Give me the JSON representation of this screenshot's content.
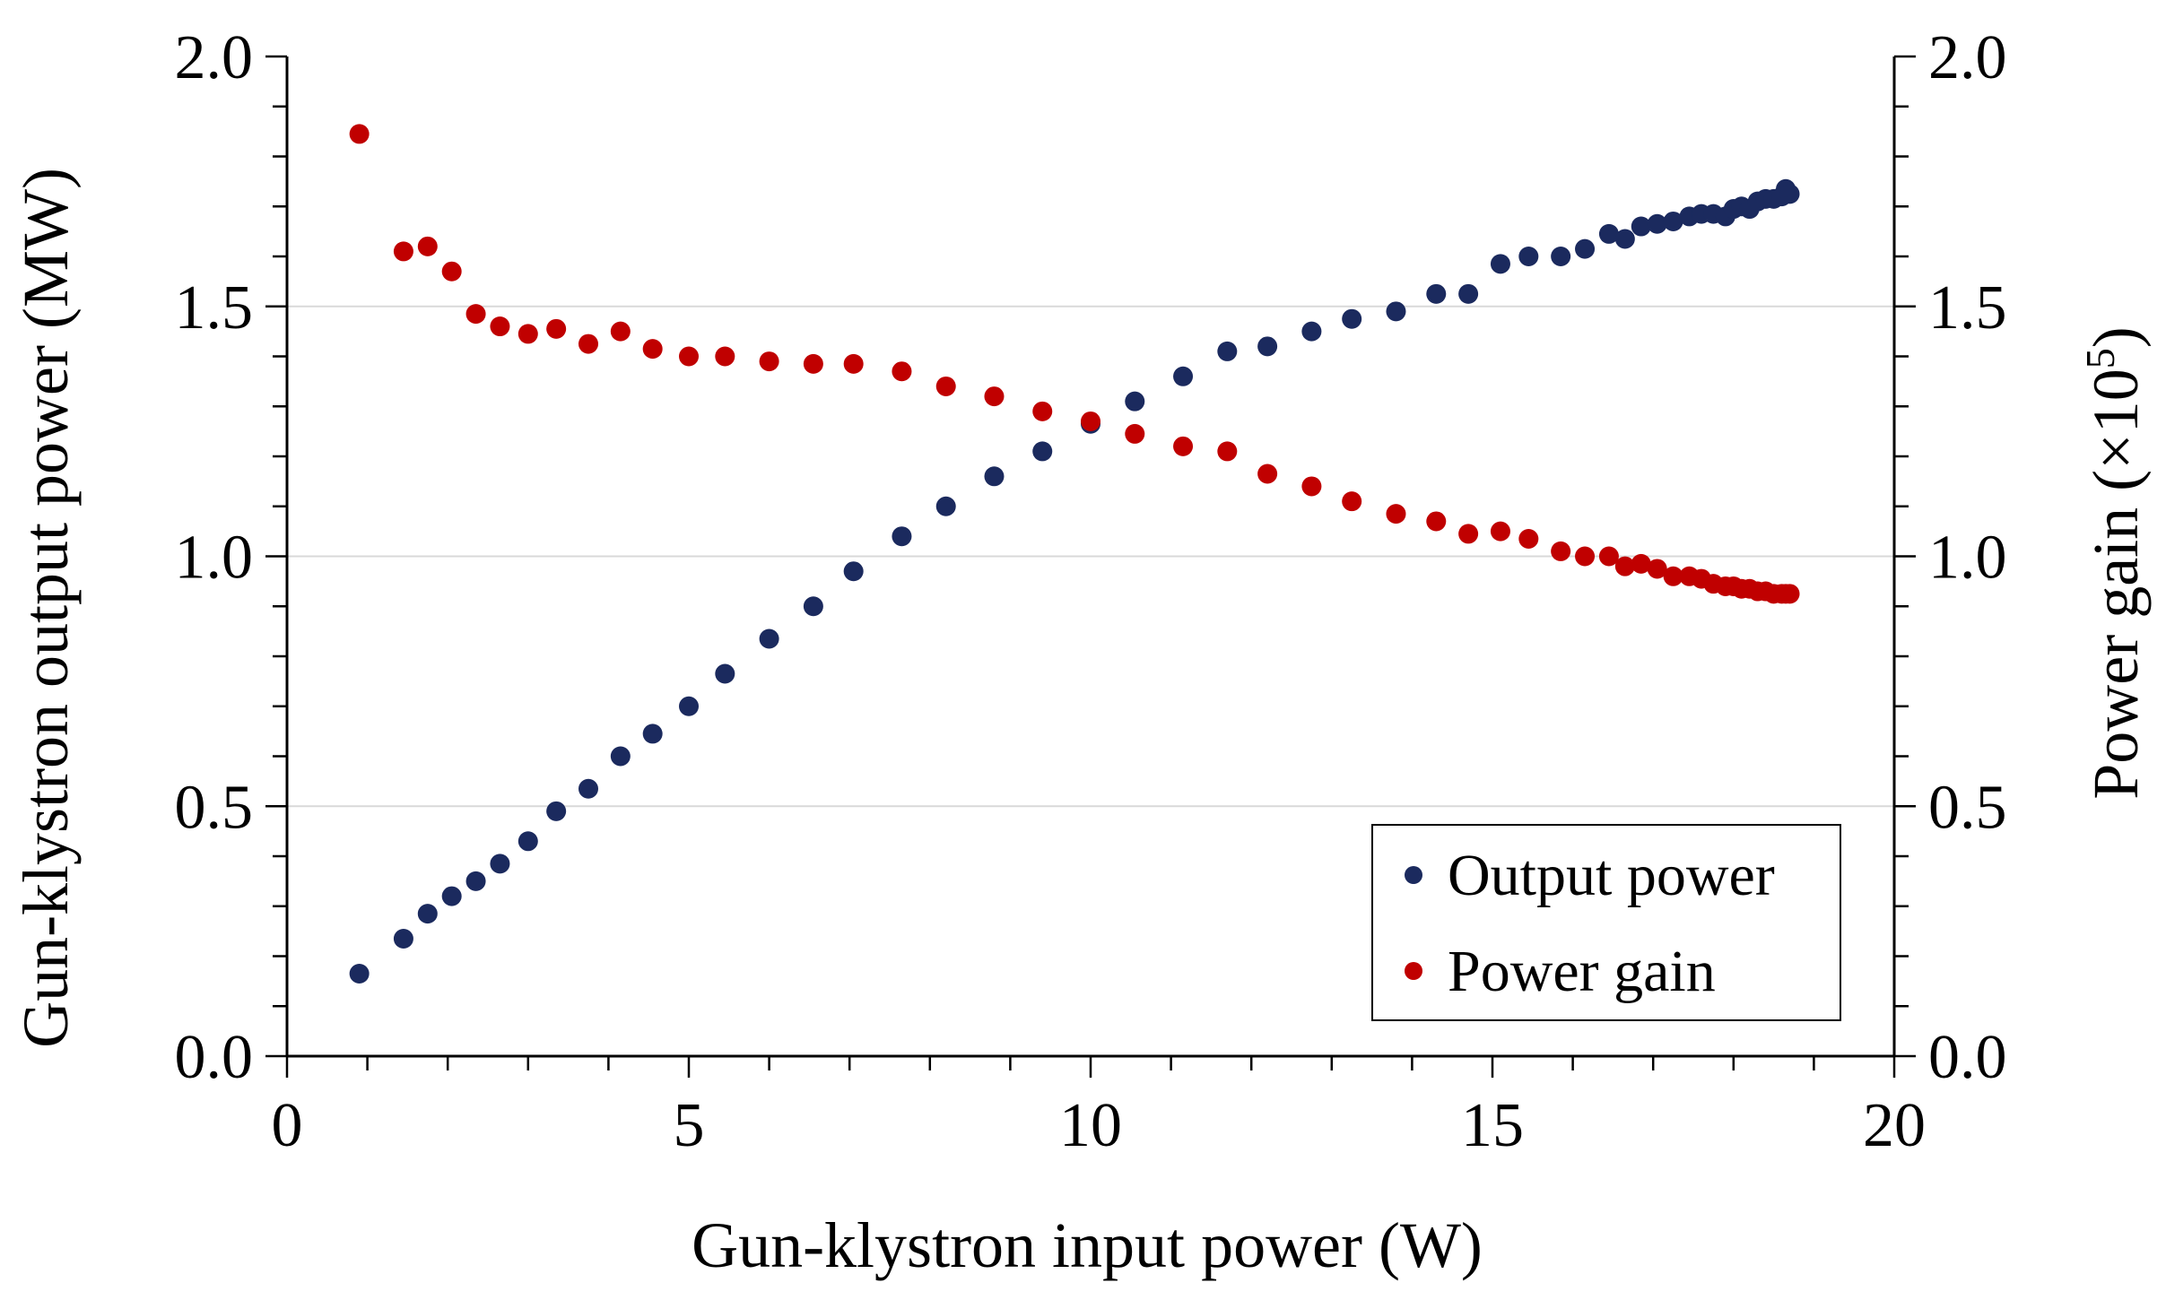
{
  "chart_data": {
    "type": "scatter",
    "title": "",
    "xlabel": "Gun-klystron input power (W)",
    "ylabel": "Gun-klystron output power (MW)",
    "y2label": "Power gain (×10⁵)",
    "y2label_base": "Power gain (×10",
    "y2label_exponent": "5",
    "y2label_suffix": ")",
    "xlim": [
      0,
      20
    ],
    "ylim": [
      0,
      2.0
    ],
    "y2lim": [
      0,
      2.0
    ],
    "x_ticks": [
      {
        "value": 0,
        "label": "0"
      },
      {
        "value": 5,
        "label": "5"
      },
      {
        "value": 10,
        "label": "10"
      },
      {
        "value": 15,
        "label": "15"
      },
      {
        "value": 20,
        "label": "20"
      }
    ],
    "y_ticks": [
      {
        "value": 0,
        "label": "0.0"
      },
      {
        "value": 0.5,
        "label": "0.5"
      },
      {
        "value": 1.0,
        "label": "1.0"
      },
      {
        "value": 1.5,
        "label": "1.5"
      },
      {
        "value": 2.0,
        "label": "2.0"
      }
    ],
    "y2_ticks": [
      {
        "value": 0,
        "label": "0.0"
      },
      {
        "value": 0.5,
        "label": "0.5"
      },
      {
        "value": 1.0,
        "label": "1.0"
      },
      {
        "value": 1.5,
        "label": "1.5"
      },
      {
        "value": 2.0,
        "label": "2.0"
      }
    ],
    "grid": "horizontal",
    "legend_position": "bottom-right",
    "series": [
      {
        "name": "Output power",
        "axis": "left",
        "color": "#1b2a5e",
        "points": [
          [
            0.9,
            0.165
          ],
          [
            1.45,
            0.235
          ],
          [
            1.75,
            0.285
          ],
          [
            2.05,
            0.32
          ],
          [
            2.35,
            0.35
          ],
          [
            2.65,
            0.385
          ],
          [
            3.0,
            0.43
          ],
          [
            3.35,
            0.49
          ],
          [
            3.75,
            0.535
          ],
          [
            4.15,
            0.6
          ],
          [
            4.55,
            0.645
          ],
          [
            5.0,
            0.7
          ],
          [
            5.45,
            0.765
          ],
          [
            6.0,
            0.835
          ],
          [
            6.55,
            0.9
          ],
          [
            7.05,
            0.97
          ],
          [
            7.65,
            1.04
          ],
          [
            8.2,
            1.1
          ],
          [
            8.8,
            1.16
          ],
          [
            9.4,
            1.21
          ],
          [
            10.0,
            1.265
          ],
          [
            10.55,
            1.31
          ],
          [
            11.15,
            1.36
          ],
          [
            11.7,
            1.41
          ],
          [
            12.2,
            1.42
          ],
          [
            12.75,
            1.45
          ],
          [
            13.25,
            1.475
          ],
          [
            13.8,
            1.49
          ],
          [
            14.3,
            1.525
          ],
          [
            14.7,
            1.525
          ],
          [
            15.1,
            1.585
          ],
          [
            15.45,
            1.6
          ],
          [
            15.85,
            1.6
          ],
          [
            16.15,
            1.615
          ],
          [
            16.45,
            1.645
          ],
          [
            16.65,
            1.635
          ],
          [
            16.85,
            1.66
          ],
          [
            17.05,
            1.665
          ],
          [
            17.25,
            1.67
          ],
          [
            17.45,
            1.68
          ],
          [
            17.6,
            1.685
          ],
          [
            17.75,
            1.685
          ],
          [
            17.9,
            1.68
          ],
          [
            18.0,
            1.695
          ],
          [
            18.1,
            1.7
          ],
          [
            18.2,
            1.695
          ],
          [
            18.3,
            1.71
          ],
          [
            18.4,
            1.715
          ],
          [
            18.5,
            1.715
          ],
          [
            18.6,
            1.72
          ],
          [
            18.65,
            1.735
          ],
          [
            18.7,
            1.725
          ]
        ]
      },
      {
        "name": "Power gain",
        "axis": "right",
        "color": "#c00000",
        "points": [
          [
            0.9,
            1.845
          ],
          [
            1.45,
            1.61
          ],
          [
            1.75,
            1.62
          ],
          [
            2.05,
            1.57
          ],
          [
            2.35,
            1.485
          ],
          [
            2.65,
            1.46
          ],
          [
            3.0,
            1.445
          ],
          [
            3.35,
            1.455
          ],
          [
            3.75,
            1.425
          ],
          [
            4.15,
            1.45
          ],
          [
            4.55,
            1.415
          ],
          [
            5.0,
            1.4
          ],
          [
            5.45,
            1.4
          ],
          [
            6.0,
            1.39
          ],
          [
            6.55,
            1.385
          ],
          [
            7.05,
            1.385
          ],
          [
            7.65,
            1.37
          ],
          [
            8.2,
            1.34
          ],
          [
            8.8,
            1.32
          ],
          [
            9.4,
            1.29
          ],
          [
            10.0,
            1.27
          ],
          [
            10.55,
            1.245
          ],
          [
            11.15,
            1.22
          ],
          [
            11.7,
            1.21
          ],
          [
            12.2,
            1.165
          ],
          [
            12.75,
            1.14
          ],
          [
            13.25,
            1.11
          ],
          [
            13.8,
            1.085
          ],
          [
            14.3,
            1.07
          ],
          [
            14.7,
            1.045
          ],
          [
            15.1,
            1.05
          ],
          [
            15.45,
            1.035
          ],
          [
            15.85,
            1.01
          ],
          [
            16.15,
            1.0
          ],
          [
            16.45,
            1.0
          ],
          [
            16.65,
            0.98
          ],
          [
            16.85,
            0.985
          ],
          [
            17.05,
            0.975
          ],
          [
            17.25,
            0.96
          ],
          [
            17.45,
            0.96
          ],
          [
            17.6,
            0.955
          ],
          [
            17.75,
            0.945
          ],
          [
            17.9,
            0.94
          ],
          [
            18.0,
            0.94
          ],
          [
            18.1,
            0.935
          ],
          [
            18.2,
            0.935
          ],
          [
            18.3,
            0.93
          ],
          [
            18.4,
            0.93
          ],
          [
            18.5,
            0.925
          ],
          [
            18.6,
            0.925
          ],
          [
            18.65,
            0.925
          ],
          [
            18.7,
            0.925
          ]
        ]
      }
    ]
  }
}
